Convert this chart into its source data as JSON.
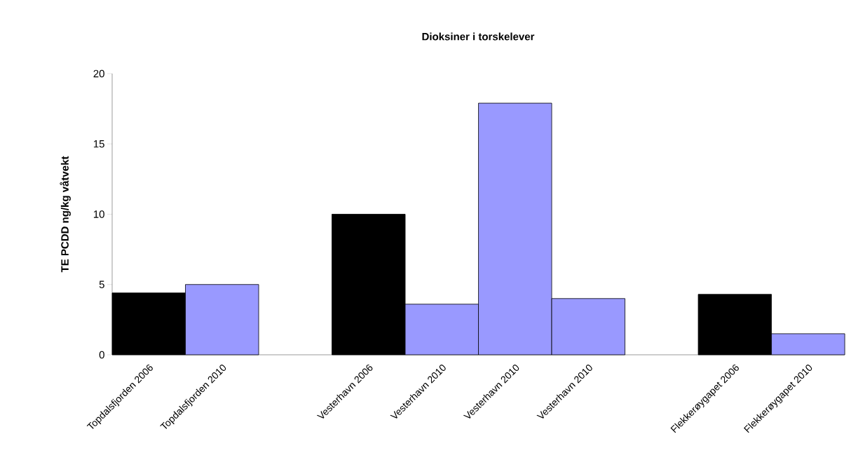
{
  "chart_data": {
    "type": "bar",
    "title": "Dioksiner i torskelever",
    "ylabel": "TE PCDD ng/kg våtvekt",
    "categories": [
      "Topdalsfjorden 2006",
      "Topdalsfjorden 2010",
      null,
      "Vesterhavn 2006",
      "Vesterhavn 2010",
      "Vesterhavn 2010",
      "Vesterhavn 2010",
      null,
      "Flekkerøygapet 2006",
      "Flekkerøygapet 2010"
    ],
    "values": [
      4.4,
      5.0,
      null,
      10.0,
      3.6,
      17.9,
      4.0,
      null,
      4.3,
      1.5
    ],
    "colors": [
      "#000000",
      "#9999ff",
      null,
      "#000000",
      "#9999ff",
      "#9999ff",
      "#9999ff",
      null,
      "#000000",
      "#9999ff"
    ],
    "ylim": [
      0,
      20
    ],
    "yticks": [
      0,
      5,
      10,
      15,
      20
    ],
    "grid": false
  }
}
